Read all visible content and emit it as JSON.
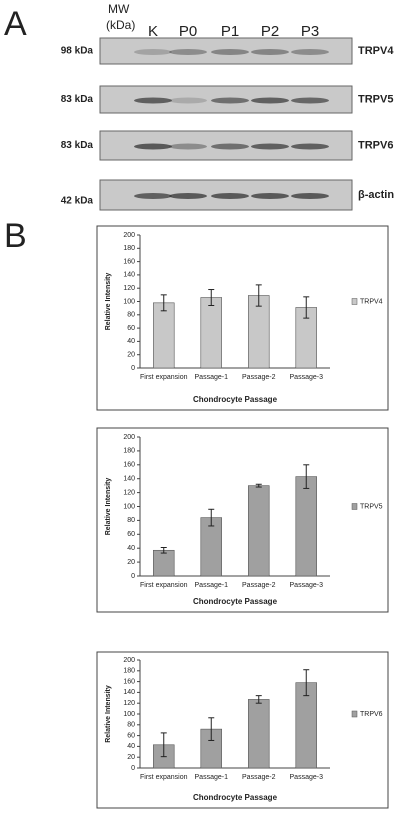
{
  "panel_a": {
    "label": "A",
    "mw_header": [
      "MW",
      "(kDa)"
    ],
    "lanes": [
      "K",
      "P0",
      "P1",
      "P2",
      "P3"
    ],
    "rows": [
      {
        "mw": "98 kDa",
        "protein": "TRPV4"
      },
      {
        "mw": "83 kDa",
        "protein": "TRPV5"
      },
      {
        "mw": "83 kDa",
        "protein": "TRPV6"
      },
      {
        "mw": "42 kDa",
        "protein": "β-actin"
      }
    ]
  },
  "panel_b_label": "B",
  "chart_data": [
    {
      "type": "bar",
      "ylabel": "Relative Intensity",
      "xlabel": "Chondrocyte Passage",
      "categories": [
        "First expansion",
        "Passage-1",
        "Passage-2",
        "Passage-3"
      ],
      "series": [
        {
          "name": "TRPV4",
          "color": "#c8c8c8",
          "values": [
            98,
            106,
            109,
            91
          ],
          "errors": [
            12,
            12,
            16,
            16
          ]
        }
      ],
      "ylim": [
        0,
        200
      ],
      "yticks": [
        0,
        20,
        40,
        60,
        80,
        100,
        120,
        140,
        160,
        180,
        200
      ],
      "legend": "right"
    },
    {
      "type": "bar",
      "ylabel": "Relative Intensity",
      "xlabel": "Chondrocyte Passage",
      "categories": [
        "First expansion",
        "Passage-1",
        "Passage-2",
        "Passage-3"
      ],
      "series": [
        {
          "name": "TRPV5",
          "color": "#a0a0a0",
          "values": [
            37,
            84,
            130,
            143
          ],
          "errors": [
            4,
            12,
            2,
            17
          ]
        }
      ],
      "ylim": [
        0,
        200
      ],
      "yticks": [
        0,
        20,
        40,
        60,
        80,
        100,
        120,
        140,
        160,
        180,
        200
      ],
      "legend": "right"
    },
    {
      "type": "bar",
      "ylabel": "Relative Intensity",
      "xlabel": "Chondrocyte Passage",
      "categories": [
        "First expansion",
        "Passage-1",
        "Passage-2",
        "Passage-3"
      ],
      "series": [
        {
          "name": "TRPV6",
          "color": "#a0a0a0",
          "values": [
            43,
            72,
            127,
            158
          ],
          "errors": [
            22,
            21,
            7,
            24
          ]
        }
      ],
      "ylim": [
        0,
        200
      ],
      "yticks": [
        0,
        20,
        40,
        60,
        80,
        100,
        120,
        140,
        160,
        180,
        200
      ],
      "legend": "right"
    }
  ]
}
